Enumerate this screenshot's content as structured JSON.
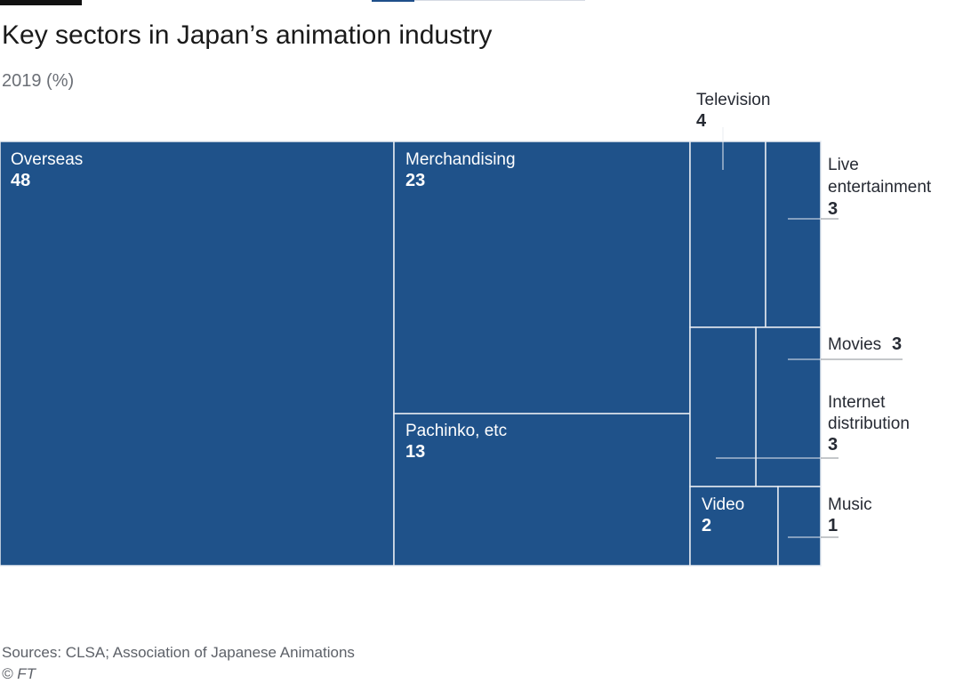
{
  "title": "Key sectors in Japan’s animation industry",
  "subtitle": "2019 (%)",
  "source": "Sources: CLSA; Association of Japanese Animations",
  "copyright": "© FT",
  "colors": {
    "fill": "#1f528a",
    "divider": "#e8ecf2",
    "inside_text": "#ffffff",
    "outside_text": "#262a33",
    "leader": "#8a8f96"
  },
  "chart_data": {
    "type": "treemap",
    "title": "Key sectors in Japan’s animation industry",
    "subtitle": "2019 (%)",
    "unit": "%",
    "items": [
      {
        "name": "Overseas",
        "value": 48,
        "value_label": "48"
      },
      {
        "name": "Merchandising",
        "value": 23,
        "value_label": "23"
      },
      {
        "name": "Pachinko, etc",
        "value": 13,
        "value_label": "13"
      },
      {
        "name": "Television",
        "value": 4,
        "value_label": "4"
      },
      {
        "name": "Live entertainment",
        "lines": [
          "Live",
          "entertainment"
        ],
        "value": 3,
        "value_label": "3"
      },
      {
        "name": "Movies",
        "value": 3,
        "value_label": "3"
      },
      {
        "name": "Internet distribution",
        "lines": [
          "Internet",
          "distribution"
        ],
        "value": 3,
        "value_label": "3"
      },
      {
        "name": "Video",
        "value": 2,
        "value_label": "2"
      },
      {
        "name": "Music",
        "value": 1,
        "value_label": "1"
      }
    ]
  }
}
